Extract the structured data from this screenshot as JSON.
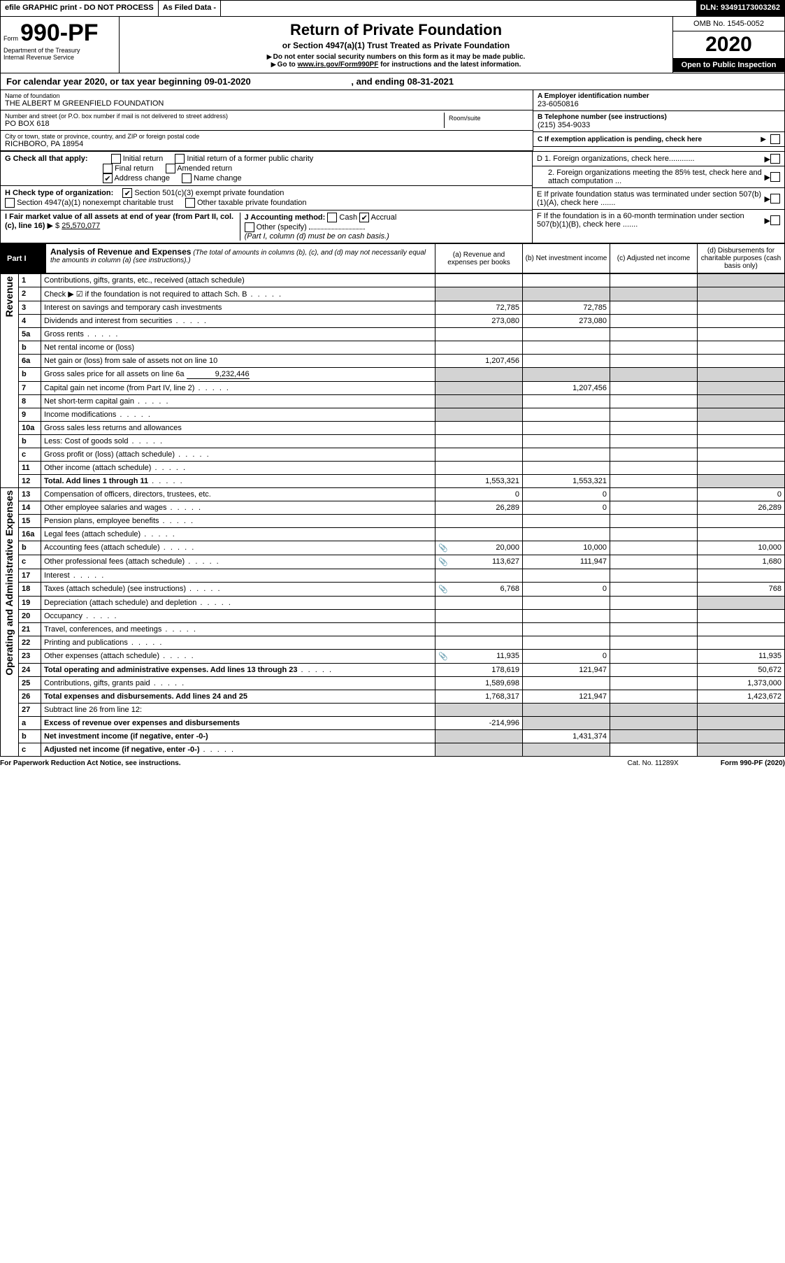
{
  "header": {
    "efile": "efile GRAPHIC print - DO NOT PROCESS",
    "asfiled": "As Filed Data -",
    "dln": "DLN: 93491173003262"
  },
  "form": {
    "prefix": "Form",
    "number": "990-PF",
    "dept1": "Department of the Treasury",
    "dept2": "Internal Revenue Service"
  },
  "title": {
    "main": "Return of Private Foundation",
    "sub": "or Section 4947(a)(1) Trust Treated as Private Foundation",
    "note1": "Do not enter social security numbers on this form as it may be made public.",
    "note2_pre": "Go to ",
    "note2_link": "www.irs.gov/Form990PF",
    "note2_post": " for instructions and the latest information."
  },
  "right": {
    "omb": "OMB No. 1545-0052",
    "year": "2020",
    "open": "Open to Public Inspection"
  },
  "calyear": {
    "pre": "For calendar year 2020, or tax year beginning 09-01-2020",
    "mid": ", and ending 08-31-2021"
  },
  "info": {
    "name_label": "Name of foundation",
    "name_val": "THE ALBERT M GREENFIELD FOUNDATION",
    "street_label": "Number and street (or P.O. box number if mail is not delivered to street address)",
    "street_val": "PO BOX 618",
    "room_label": "Room/suite",
    "room_val": "",
    "city_label": "City or town, state or province, country, and ZIP or foreign postal code",
    "city_val": "RICHBORO, PA 18954",
    "ein_label": "A Employer identification number",
    "ein_val": "23-6050816",
    "tel_label": "B Telephone number (see instructions)",
    "tel_val": "(215) 354-9033",
    "c_label": "C If exemption application is pending, check here"
  },
  "g": {
    "prefix": "G Check all that apply:",
    "opt1": "Initial return",
    "opt2": "Initial return of a former public charity",
    "opt3": "Final return",
    "opt4": "Amended return",
    "opt5": "Address change",
    "opt6": "Name change",
    "h_prefix": "H Check type of organization:",
    "h1": "Section 501(c)(3) exempt private foundation",
    "h2": "Section 4947(a)(1) nonexempt charitable trust",
    "h3": "Other taxable private foundation",
    "d1": "D 1. Foreign organizations, check here............",
    "d2": "2. Foreign organizations meeting the 85% test, check here and attach computation ...",
    "e": "E If private foundation status was terminated under section 507(b)(1)(A), check here .......",
    "f": "F If the foundation is in a 60-month termination under section 507(b)(1)(B), check here ......."
  },
  "i": {
    "label": "I Fair market value of all assets at end of year (from Part II, col. (c), line 16)",
    "arrow": "▶ $",
    "val": "25,570,077"
  },
  "j": {
    "label": "J Accounting method:",
    "cash": "Cash",
    "accr": "Accrual",
    "other": "Other (specify)",
    "note": "(Part I, column (d) must be on cash basis.)"
  },
  "part1": {
    "label": "Part I",
    "title": "Analysis of Revenue and Expenses",
    "subtitle": " (The total of amounts in columns (b), (c), and (d) may not necessarily equal the amounts in column (a) (see instructions).)",
    "col_a": "(a) Revenue and expenses per books",
    "col_b": "(b) Net investment income",
    "col_c": "(c) Adjusted net income",
    "col_d": "(d) Disbursements for charitable purposes (cash basis only)"
  },
  "side_labels": {
    "revenue": "Revenue",
    "expenses": "Operating and Administrative Expenses"
  },
  "rows": [
    {
      "n": "1",
      "desc": "Contributions, gifts, grants, etc., received (attach schedule)",
      "a": "",
      "b": "",
      "c": "",
      "d": ""
    },
    {
      "n": "2",
      "desc": "Check ▶ ☑ if the foundation is not required to attach Sch. B",
      "dots": true,
      "a": "",
      "b": "",
      "c": "",
      "d": ""
    },
    {
      "n": "3",
      "desc": "Interest on savings and temporary cash investments",
      "a": "72,785",
      "b": "72,785",
      "c": "",
      "d": ""
    },
    {
      "n": "4",
      "desc": "Dividends and interest from securities",
      "dots": true,
      "a": "273,080",
      "b": "273,080",
      "c": "",
      "d": ""
    },
    {
      "n": "5a",
      "desc": "Gross rents",
      "dots": true,
      "a": "",
      "b": "",
      "c": "",
      "d": ""
    },
    {
      "n": "b",
      "desc": "Net rental income or (loss)",
      "a": "",
      "b": "",
      "c": "",
      "d": ""
    },
    {
      "n": "6a",
      "desc": "Net gain or (loss) from sale of assets not on line 10",
      "a": "1,207,456",
      "b": "",
      "c": "",
      "d": ""
    },
    {
      "n": "b",
      "desc": "Gross sales price for all assets on line 6a",
      "inline_val": "9,232,446",
      "a": "",
      "b": "",
      "c": "",
      "d": ""
    },
    {
      "n": "7",
      "desc": "Capital gain net income (from Part IV, line 2)",
      "dots": true,
      "a": "",
      "b": "1,207,456",
      "c": "",
      "d": ""
    },
    {
      "n": "8",
      "desc": "Net short-term capital gain",
      "dots": true,
      "a": "",
      "b": "",
      "c": "",
      "d": ""
    },
    {
      "n": "9",
      "desc": "Income modifications",
      "dots": true,
      "a": "",
      "b": "",
      "c": "",
      "d": ""
    },
    {
      "n": "10a",
      "desc": "Gross sales less returns and allowances",
      "a": "",
      "b": "",
      "c": "",
      "d": ""
    },
    {
      "n": "b",
      "desc": "Less: Cost of goods sold",
      "dots": true,
      "a": "",
      "b": "",
      "c": "",
      "d": ""
    },
    {
      "n": "c",
      "desc": "Gross profit or (loss) (attach schedule)",
      "dots": true,
      "a": "",
      "b": "",
      "c": "",
      "d": ""
    },
    {
      "n": "11",
      "desc": "Other income (attach schedule)",
      "dots": true,
      "a": "",
      "b": "",
      "c": "",
      "d": ""
    },
    {
      "n": "12",
      "desc": "Total. Add lines 1 through 11",
      "bold": true,
      "dots": true,
      "a": "1,553,321",
      "b": "1,553,321",
      "c": "",
      "d": ""
    },
    {
      "n": "13",
      "desc": "Compensation of officers, directors, trustees, etc.",
      "a": "0",
      "b": "0",
      "c": "",
      "d": "0"
    },
    {
      "n": "14",
      "desc": "Other employee salaries and wages",
      "dots": true,
      "a": "26,289",
      "b": "0",
      "c": "",
      "d": "26,289"
    },
    {
      "n": "15",
      "desc": "Pension plans, employee benefits",
      "dots": true,
      "a": "",
      "b": "",
      "c": "",
      "d": ""
    },
    {
      "n": "16a",
      "desc": "Legal fees (attach schedule)",
      "dots": true,
      "a": "",
      "b": "",
      "c": "",
      "d": ""
    },
    {
      "n": "b",
      "desc": "Accounting fees (attach schedule)",
      "dots": true,
      "icon": true,
      "a": "20,000",
      "b": "10,000",
      "c": "",
      "d": "10,000"
    },
    {
      "n": "c",
      "desc": "Other professional fees (attach schedule)",
      "dots": true,
      "icon": true,
      "a": "113,627",
      "b": "111,947",
      "c": "",
      "d": "1,680"
    },
    {
      "n": "17",
      "desc": "Interest",
      "dots": true,
      "a": "",
      "b": "",
      "c": "",
      "d": ""
    },
    {
      "n": "18",
      "desc": "Taxes (attach schedule) (see instructions)",
      "dots": true,
      "icon": true,
      "a": "6,768",
      "b": "0",
      "c": "",
      "d": "768"
    },
    {
      "n": "19",
      "desc": "Depreciation (attach schedule) and depletion",
      "dots": true,
      "a": "",
      "b": "",
      "c": "",
      "d": ""
    },
    {
      "n": "20",
      "desc": "Occupancy",
      "dots": true,
      "a": "",
      "b": "",
      "c": "",
      "d": ""
    },
    {
      "n": "21",
      "desc": "Travel, conferences, and meetings",
      "dots": true,
      "a": "",
      "b": "",
      "c": "",
      "d": ""
    },
    {
      "n": "22",
      "desc": "Printing and publications",
      "dots": true,
      "a": "",
      "b": "",
      "c": "",
      "d": ""
    },
    {
      "n": "23",
      "desc": "Other expenses (attach schedule)",
      "dots": true,
      "icon": true,
      "a": "11,935",
      "b": "0",
      "c": "",
      "d": "11,935"
    },
    {
      "n": "24",
      "desc": "Total operating and administrative expenses. Add lines 13 through 23",
      "bold": true,
      "dots": true,
      "a": "178,619",
      "b": "121,947",
      "c": "",
      "d": "50,672"
    },
    {
      "n": "25",
      "desc": "Contributions, gifts, grants paid",
      "dots": true,
      "a": "1,589,698",
      "b": "",
      "c": "",
      "d": "1,373,000"
    },
    {
      "n": "26",
      "desc": "Total expenses and disbursements. Add lines 24 and 25",
      "bold": true,
      "a": "1,768,317",
      "b": "121,947",
      "c": "",
      "d": "1,423,672"
    },
    {
      "n": "27",
      "desc": "Subtract line 26 from line 12:",
      "a": "",
      "b": "",
      "c": "",
      "d": ""
    },
    {
      "n": "a",
      "desc": "Excess of revenue over expenses and disbursements",
      "bold": true,
      "a": "-214,996",
      "b": "",
      "c": "",
      "d": ""
    },
    {
      "n": "b",
      "desc": "Net investment income (if negative, enter -0-)",
      "bold": true,
      "a": "",
      "b": "1,431,374",
      "c": "",
      "d": ""
    },
    {
      "n": "c",
      "desc": "Adjusted net income (if negative, enter -0-)",
      "bold": true,
      "dots": true,
      "a": "",
      "b": "",
      "c": "",
      "d": ""
    }
  ],
  "footer": {
    "left": "For Paperwork Reduction Act Notice, see instructions.",
    "mid": "Cat. No. 11289X",
    "right": "Form 990-PF (2020)"
  },
  "grey_map": {
    "1": [
      "d"
    ],
    "2": [
      "a",
      "b",
      "c",
      "d"
    ],
    "5a": [
      "d"
    ],
    "b_5": [],
    "6a": [
      "d"
    ],
    "b_6": [
      "a",
      "b",
      "c",
      "d"
    ],
    "7": [
      "a",
      "d"
    ],
    "8": [
      "a",
      "d"
    ],
    "9": [
      "a",
      "d"
    ],
    "10a": [
      "a",
      "b",
      "c",
      "d"
    ],
    "b_10": [
      "a",
      "b",
      "c",
      "d"
    ],
    "c_10": [
      "d"
    ],
    "12": [
      "d"
    ],
    "19": [
      "d"
    ],
    "27": [
      "a",
      "b",
      "c",
      "d"
    ],
    "a_27": [
      "b",
      "c",
      "d"
    ],
    "b_27": [
      "a",
      "c",
      "d"
    ],
    "c_27": [
      "a",
      "b",
      "d"
    ]
  }
}
